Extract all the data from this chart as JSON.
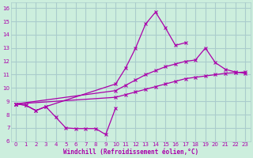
{
  "xlabel": "Windchill (Refroidissement éolien,°C)",
  "xlim": [
    -0.5,
    23.5
  ],
  "ylim": [
    6,
    16.4
  ],
  "xticks": [
    0,
    1,
    2,
    3,
    4,
    5,
    6,
    7,
    8,
    9,
    10,
    11,
    12,
    13,
    14,
    15,
    16,
    17,
    18,
    19,
    20,
    21,
    22,
    23
  ],
  "yticks": [
    6,
    7,
    8,
    9,
    10,
    11,
    12,
    13,
    14,
    15,
    16
  ],
  "bg_color": "#cceedd",
  "grid_color": "#aacccc",
  "line_color": "#aa00aa",
  "lines": [
    {
      "x": [
        0,
        1,
        2,
        3,
        4,
        5,
        6,
        7,
        8,
        9,
        10
      ],
      "y": [
        8.8,
        8.7,
        8.3,
        8.6,
        7.8,
        7.0,
        6.95,
        6.95,
        6.95,
        6.5,
        8.5
      ]
    },
    {
      "comment": "peak line: starts (0,8.8), goes to (3,8.6), jumps to (10,10.3), peaks ~(14,15.7), ends ~(17,13.4)",
      "x": [
        0,
        1,
        2,
        3,
        10,
        11,
        12,
        13,
        14,
        15,
        16,
        17
      ],
      "y": [
        8.8,
        8.7,
        8.3,
        8.6,
        10.3,
        11.5,
        13.0,
        14.8,
        15.7,
        14.5,
        13.2,
        13.4
      ]
    },
    {
      "x": [
        0,
        10,
        11,
        12,
        13,
        14,
        15,
        16,
        17,
        18,
        19,
        20,
        21,
        22,
        23
      ],
      "y": [
        8.8,
        9.8,
        10.2,
        10.6,
        11.0,
        11.3,
        11.6,
        11.8,
        12.0,
        12.1,
        13.0,
        11.9,
        11.4,
        11.2,
        11.1
      ]
    },
    {
      "x": [
        0,
        10,
        11,
        12,
        13,
        14,
        15,
        16,
        17,
        18,
        19,
        20,
        21,
        22,
        23
      ],
      "y": [
        8.8,
        9.3,
        9.5,
        9.7,
        9.9,
        10.1,
        10.3,
        10.5,
        10.7,
        10.8,
        10.9,
        11.0,
        11.1,
        11.15,
        11.2
      ]
    }
  ]
}
